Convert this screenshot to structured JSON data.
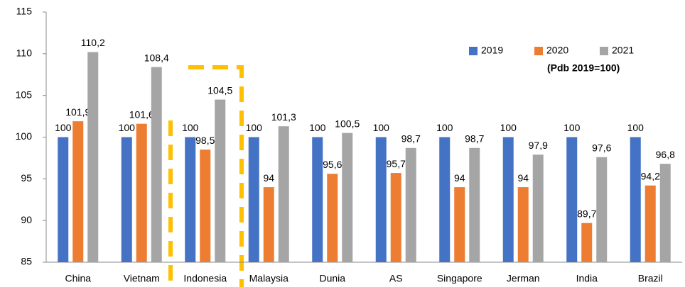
{
  "chart_data": {
    "type": "bar",
    "annotation": "(Pdb 2019=100)",
    "categories": [
      "China",
      "Vietnam",
      "Indonesia",
      "Malaysia",
      "Dunia",
      "AS",
      "Singapore",
      "Jerman",
      "India",
      "Brazil"
    ],
    "series": [
      {
        "name": "2019",
        "color": "#4472c4",
        "values": [
          100,
          100,
          100,
          100,
          100,
          100,
          100,
          100,
          100,
          100
        ]
      },
      {
        "name": "2020",
        "color": "#ed7d31",
        "values": [
          101.9,
          101.6,
          98.5,
          94,
          95.6,
          95.7,
          94,
          94,
          89.7,
          94.2
        ],
        "value_labels": [
          "101,9",
          "101,6",
          "98,5",
          "94",
          "95,6",
          "95,7",
          "94",
          "94",
          "89,7",
          "94,2"
        ]
      },
      {
        "name": "2021",
        "color": "#a5a5a5",
        "values": [
          110.2,
          108.4,
          104.5,
          101.3,
          100.5,
          98.7,
          98.7,
          97.9,
          97.6,
          96.8
        ],
        "value_labels": [
          "110,2",
          "108,4",
          "104,5",
          "101,3",
          "100,5",
          "98,7",
          "98,7",
          "97,9",
          "97,6",
          "96,8"
        ]
      }
    ],
    "ylim": [
      85,
      115
    ],
    "yticks": [
      85,
      90,
      95,
      100,
      105,
      110,
      115
    ],
    "legend": "top-right"
  }
}
